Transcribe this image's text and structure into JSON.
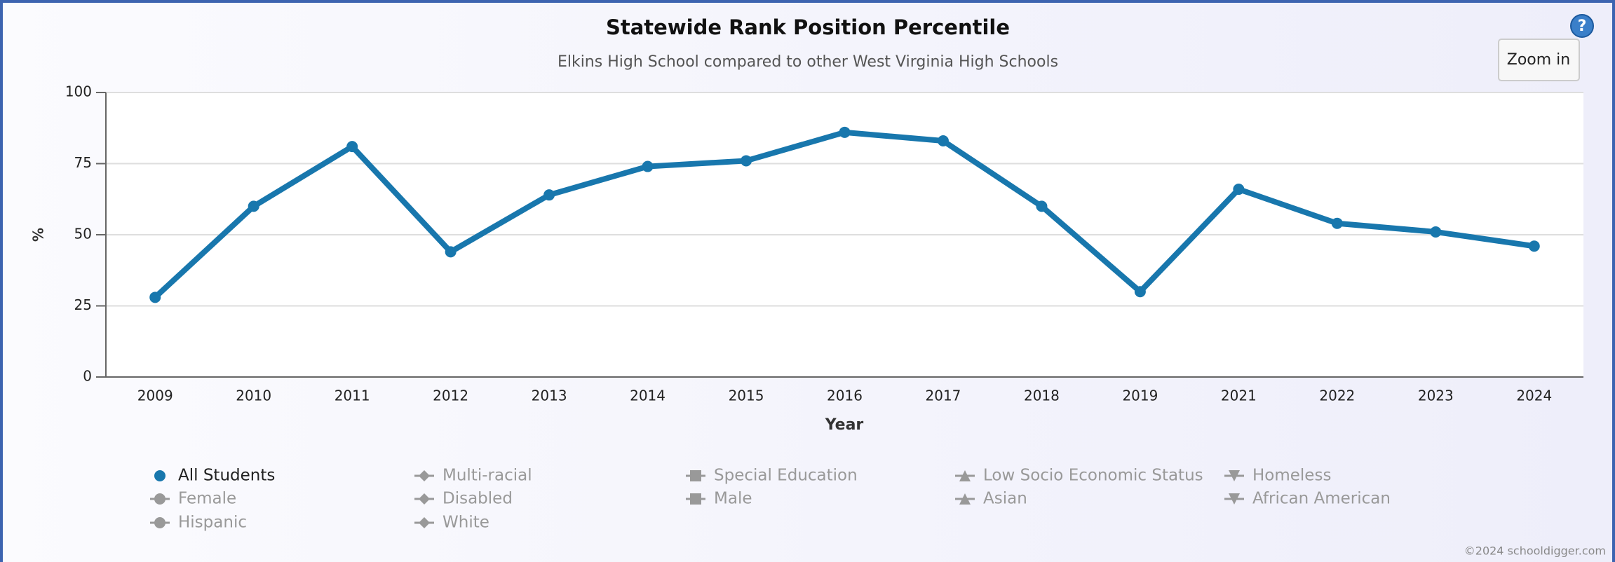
{
  "chart_data": {
    "type": "line",
    "title": "Statewide Rank Position Percentile",
    "subtitle": "Elkins High School compared to other West Virginia High Schools",
    "x_label": "Year",
    "y_label": "%",
    "categories": [
      "2009",
      "2010",
      "2011",
      "2012",
      "2013",
      "2014",
      "2015",
      "2016",
      "2017",
      "2018",
      "2019",
      "2021",
      "2022",
      "2023",
      "2024"
    ],
    "series": [
      {
        "name": "All Students",
        "color": "#1877ad",
        "values": [
          28,
          60,
          81,
          44,
          64,
          74,
          76,
          86,
          83,
          60,
          30,
          66,
          54,
          51,
          46
        ]
      }
    ],
    "hidden_series": [
      {
        "name": "Multi-racial",
        "symbol": "diamond"
      },
      {
        "name": "Special Education",
        "symbol": "square"
      },
      {
        "name": "Low Socio Economic Status",
        "symbol": "triangle"
      },
      {
        "name": "Homeless",
        "symbol": "triangle-down"
      },
      {
        "name": "Female",
        "symbol": "circle"
      },
      {
        "name": "Disabled",
        "symbol": "diamond"
      },
      {
        "name": "Male",
        "symbol": "square"
      },
      {
        "name": "Asian",
        "symbol": "triangle"
      },
      {
        "name": "African American",
        "symbol": "triangle-down"
      },
      {
        "name": "Hispanic",
        "symbol": "circle"
      },
      {
        "name": "White",
        "symbol": "diamond"
      }
    ],
    "ylim": [
      0,
      100
    ],
    "yticks": [
      0,
      25,
      50,
      75,
      100
    ],
    "grid": true,
    "legend": "bottom",
    "zoom_button": "Zoom in",
    "help_icon": "?",
    "credit": "©2024 schooldigger.com"
  }
}
